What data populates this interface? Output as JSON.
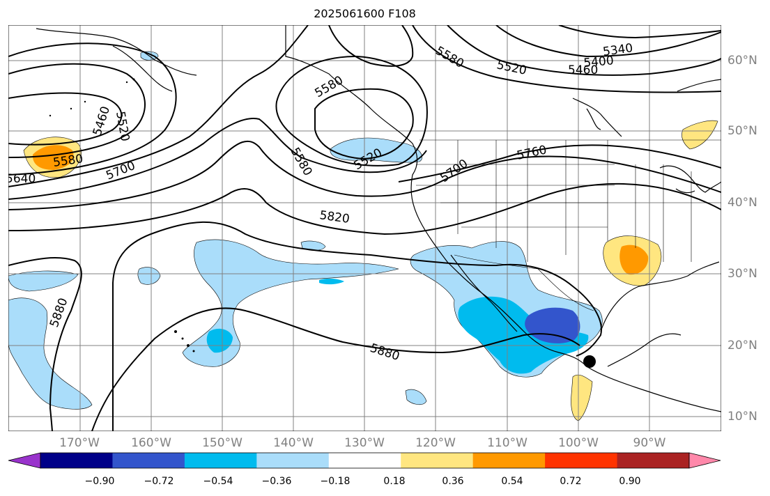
{
  "title": "2025061600 F108",
  "longitude_labels": [
    "170°W",
    "160°W",
    "150°W",
    "140°W",
    "130°W",
    "120°W",
    "110°W",
    "100°W",
    "90°W"
  ],
  "latitude_labels": [
    "60°N",
    "50°N",
    "40°N",
    "30°N",
    "20°N",
    "10°N"
  ],
  "contour_labels": [
    "5340",
    "5400",
    "5460",
    "5520",
    "5580",
    "5460",
    "5520",
    "5580",
    "5640",
    "5700",
    "5580",
    "5520",
    "5580",
    "5700",
    "5760",
    "5820",
    "5880",
    "5880"
  ],
  "colorbar": {
    "tick_labels": [
      "−0.90",
      "−0.72",
      "−0.54",
      "−0.36",
      "−0.18",
      "0.18",
      "0.36",
      "0.54",
      "0.72",
      "0.90"
    ],
    "colors": [
      "#9933cc",
      "#000088",
      "#3355cc",
      "#00bbee",
      "#aaddfa",
      "#ffffff",
      "#ffe680",
      "#ff9900",
      "#ff3300",
      "#aa2222",
      "#ff88aa"
    ]
  },
  "marker": "storm-center-dot",
  "colors": {
    "contour": "#000000",
    "grid": "#808080",
    "label": "#808080"
  }
}
